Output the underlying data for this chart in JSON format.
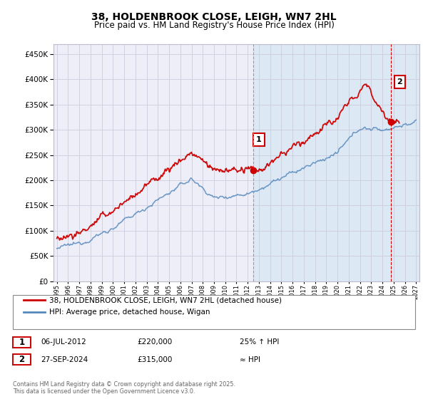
{
  "title": "38, HOLDENBROOK CLOSE, LEIGH, WN7 2HL",
  "subtitle": "Price paid vs. HM Land Registry's House Price Index (HPI)",
  "legend_label_red": "38, HOLDENBROOK CLOSE, LEIGH, WN7 2HL (detached house)",
  "legend_label_blue": "HPI: Average price, detached house, Wigan",
  "annotation1_label": "1",
  "annotation1_date": "06-JUL-2012",
  "annotation1_price": "£220,000",
  "annotation1_hpi": "25% ↑ HPI",
  "annotation1_year": 2012.5,
  "annotation1_value": 220000,
  "annotation2_label": "2",
  "annotation2_date": "27-SEP-2024",
  "annotation2_price": "£315,000",
  "annotation2_hpi": "≈ HPI",
  "annotation2_year": 2024.75,
  "annotation2_value": 315000,
  "copyright_text": "Contains HM Land Registry data © Crown copyright and database right 2025.\nThis data is licensed under the Open Government Licence v3.0.",
  "red_color": "#cc0000",
  "blue_color": "#5588bb",
  "grid_color": "#ccccdd",
  "background_color": "#ffffff",
  "plot_bg_color": "#eeeef8",
  "shade_color": "#dde8f5",
  "dashed_line1_color": "#999999",
  "dashed_line2_color": "#cc0000",
  "ylim": [
    0,
    470000
  ],
  "yticks": [
    0,
    50000,
    100000,
    150000,
    200000,
    250000,
    300000,
    350000,
    400000,
    450000
  ],
  "xlim_start": 1994.7,
  "xlim_end": 2027.3,
  "xtick_years": [
    1995,
    1996,
    1997,
    1998,
    1999,
    2000,
    2001,
    2002,
    2003,
    2004,
    2005,
    2006,
    2007,
    2008,
    2009,
    2010,
    2011,
    2012,
    2013,
    2014,
    2015,
    2016,
    2017,
    2018,
    2019,
    2020,
    2021,
    2022,
    2023,
    2024,
    2025,
    2026,
    2027
  ]
}
